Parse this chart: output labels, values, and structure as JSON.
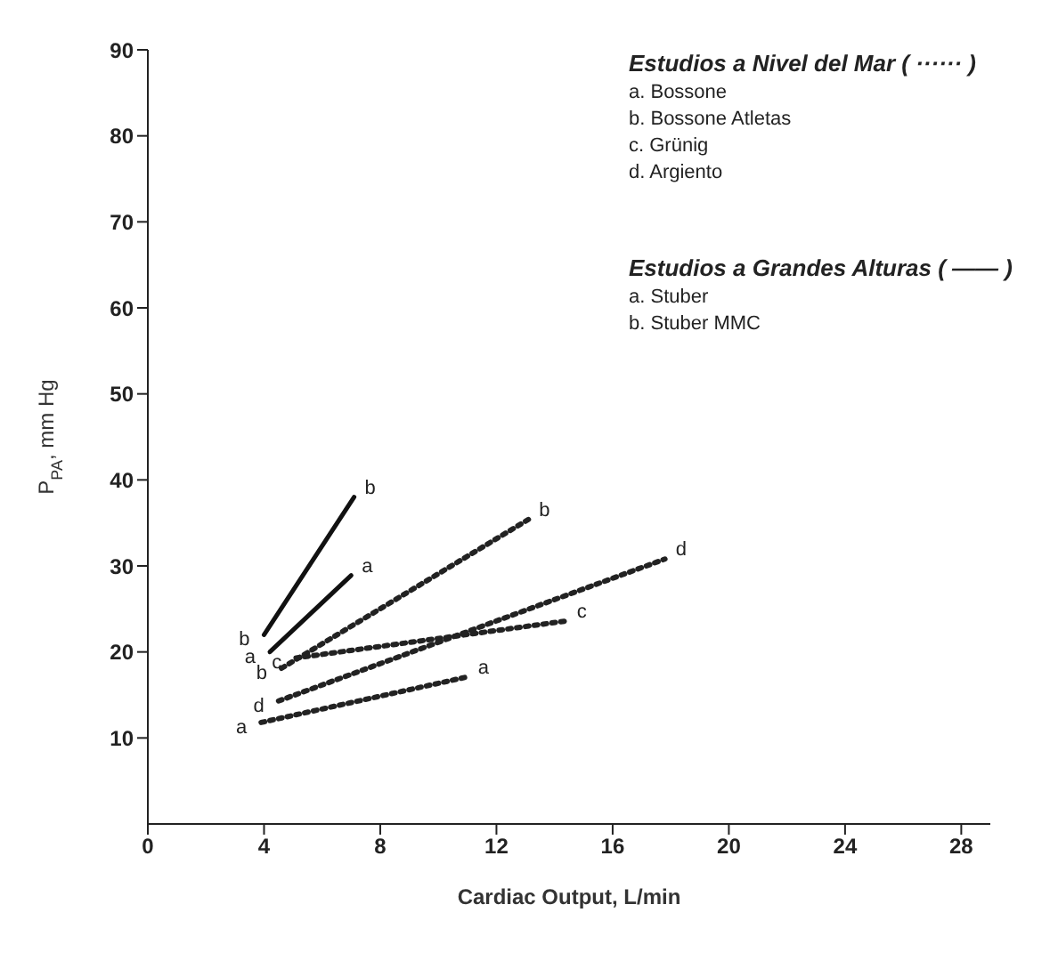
{
  "chart_data": {
    "type": "line",
    "xlabel": "Cardiac Output, L/min",
    "ylabel": "P$_{PA}$, mm Hg",
    "xlim": [
      0,
      29
    ],
    "xticks": [
      0,
      4,
      8,
      12,
      16,
      20,
      24,
      28
    ],
    "ylim": [
      0,
      90
    ],
    "yticks": [
      10,
      20,
      30,
      40,
      50,
      60,
      70,
      80,
      90
    ],
    "marker": "none",
    "annotations": [
      "Estudios a Nivel del Mar ( ······ )",
      "a. Bossone",
      "b. Bossone Atletas",
      "c. Grünig",
      "d. Argiento",
      "Estudios a Grandes Alturas ( —— )",
      "a. Stuber",
      "b. Stuber MMC"
    ],
    "series": [
      {
        "name": "a",
        "color": "#222222",
        "line_style": "dotted",
        "x": [
          3.9,
          11.0
        ],
        "values": [
          11.8,
          17.1
        ]
      },
      {
        "name": "b",
        "color": "#222222",
        "line_style": "dotted",
        "x": [
          4.6,
          13.1
        ],
        "values": [
          18.1,
          35.4
        ]
      },
      {
        "name": "c",
        "color": "#222222",
        "line_style": "dotted",
        "x": [
          5.1,
          14.4
        ],
        "values": [
          19.3,
          23.6
        ]
      },
      {
        "name": "d",
        "color": "#222222",
        "line_style": "dotted",
        "x": [
          4.5,
          17.8
        ],
        "values": [
          14.3,
          30.8
        ]
      },
      {
        "name": "a",
        "color": "#111111",
        "line_style": "solid",
        "x": [
          4.2,
          7.0
        ],
        "values": [
          20.0,
          28.9
        ]
      },
      {
        "name": "b",
        "color": "#111111",
        "line_style": "solid",
        "x": [
          4.0,
          7.1
        ],
        "values": [
          22.0,
          38.0
        ]
      }
    ]
  }
}
